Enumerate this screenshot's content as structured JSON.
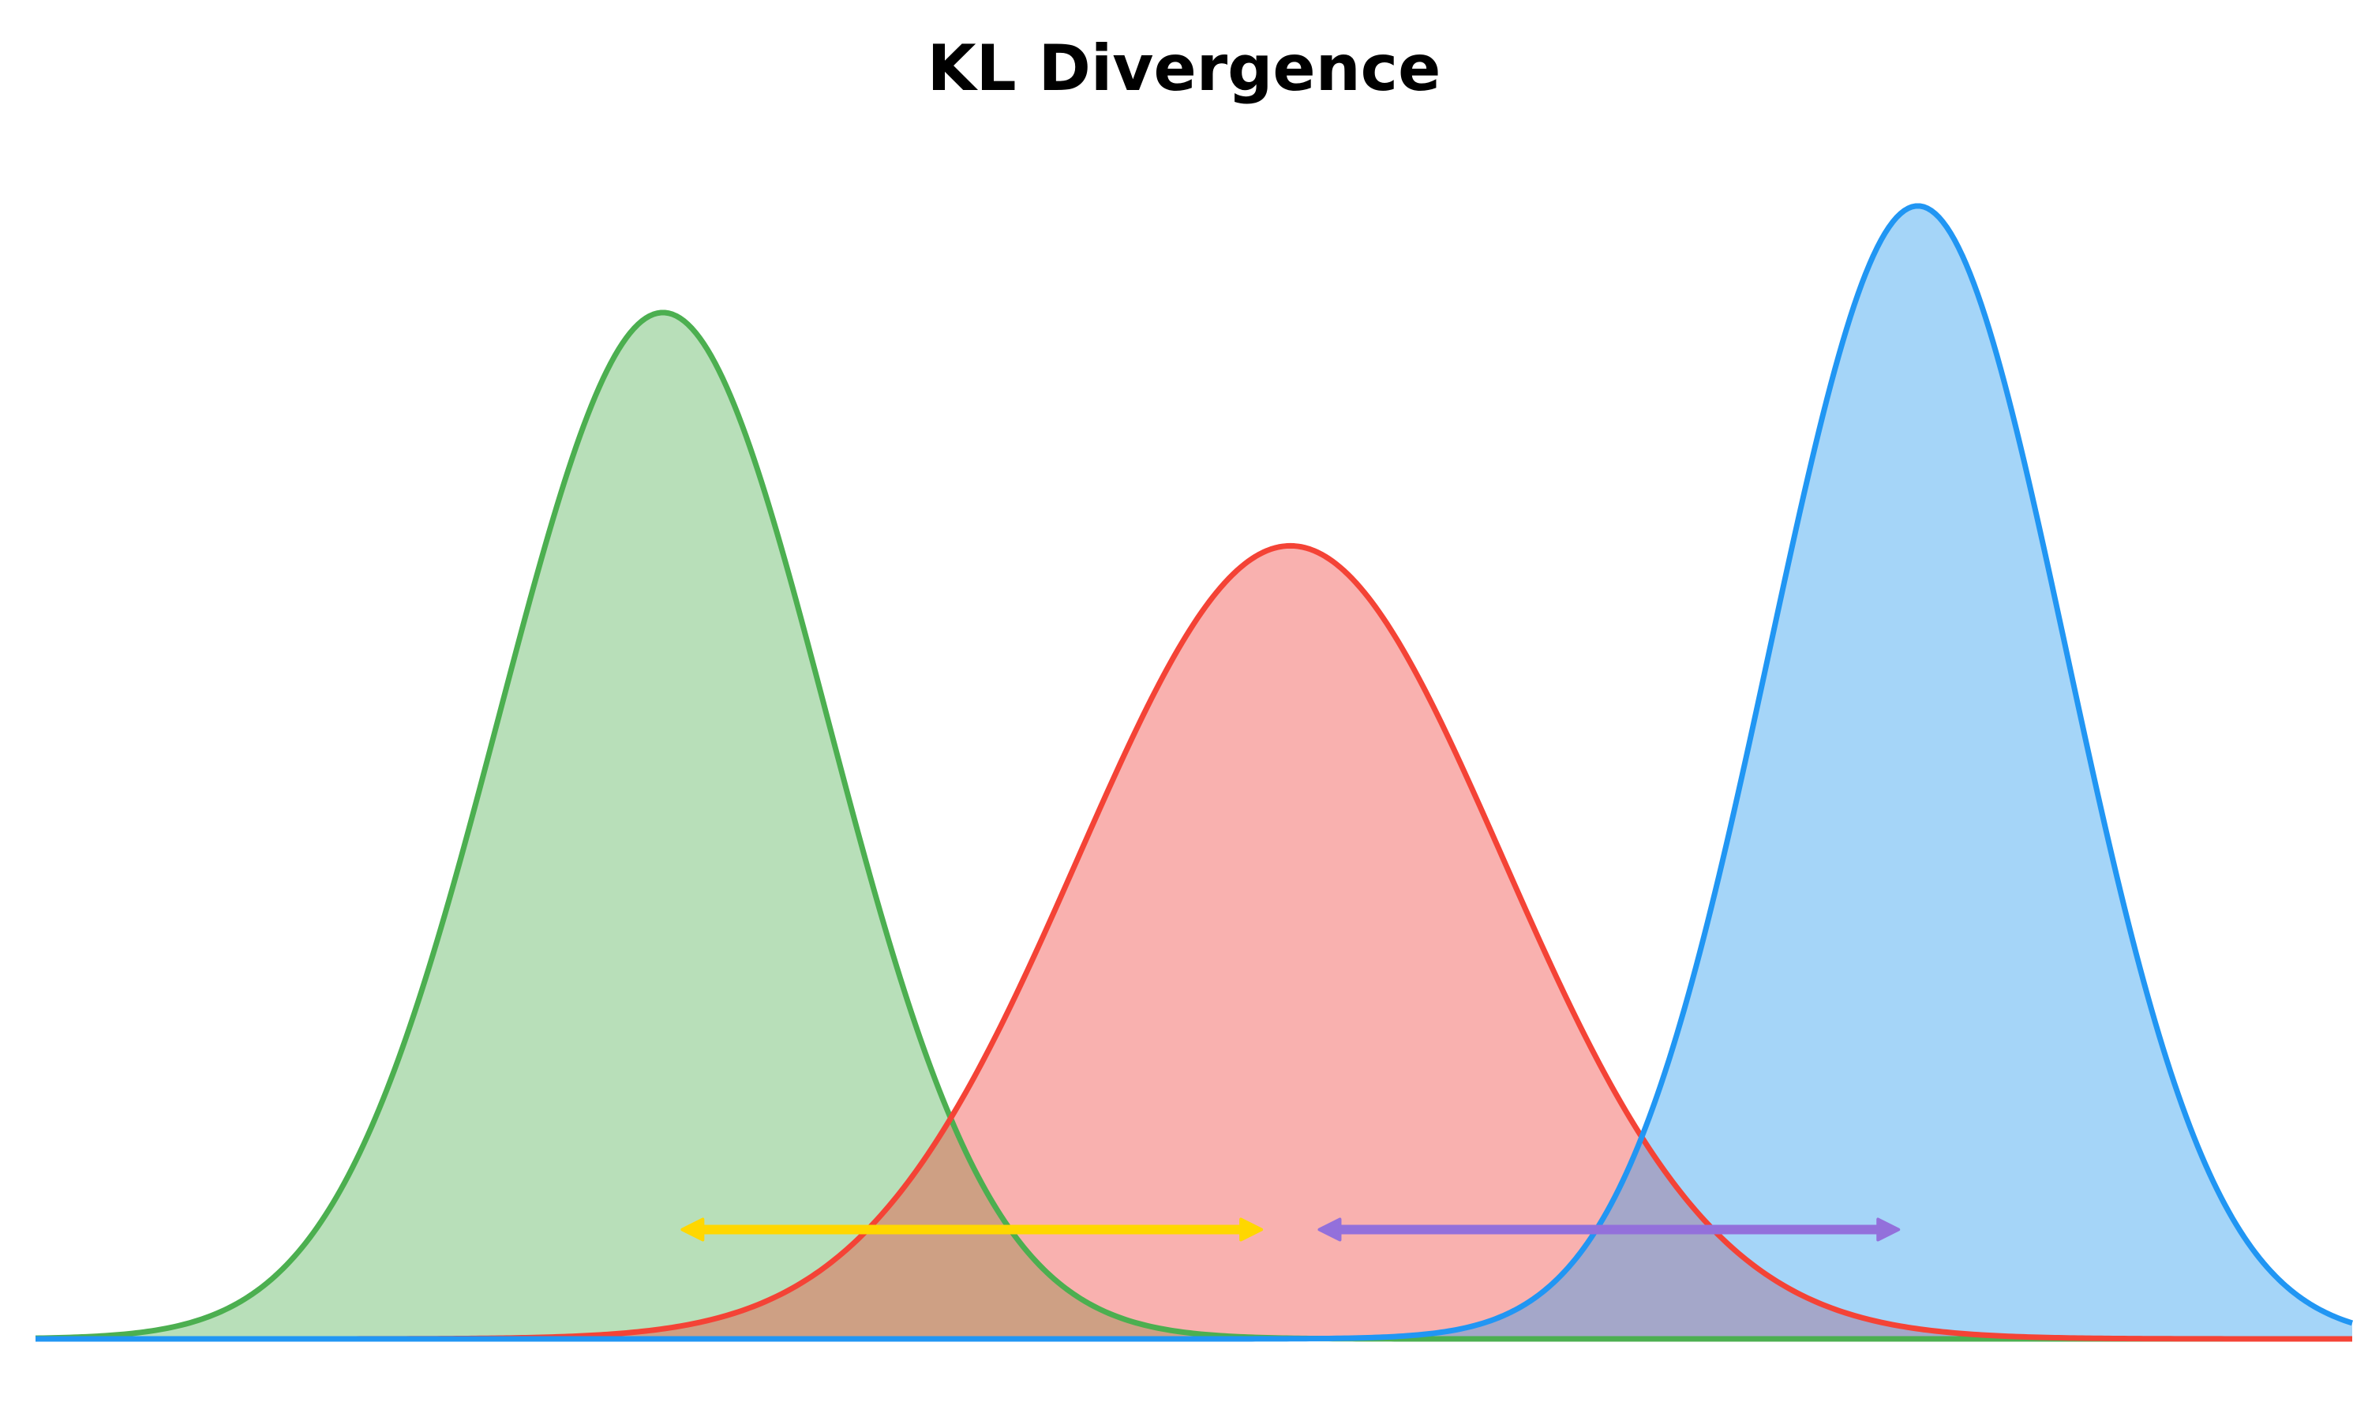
{
  "chart_data": {
    "type": "area",
    "title": "KL Divergence",
    "xlabel": "",
    "ylabel": "",
    "xlim": [
      -6,
      6
    ],
    "ylim": [
      0,
      0.5
    ],
    "grid": false,
    "axes_visible": false,
    "series": [
      {
        "mean": -2.75,
        "std": 0.85,
        "stroke": "#4CAF50",
        "fill": "#B8DFB9"
      },
      {
        "mean": 0.5,
        "std": 1.1,
        "stroke": "#F44336",
        "fill": "#F9B1AF"
      },
      {
        "mean": 3.75,
        "std": 0.77,
        "stroke": "#2196F3",
        "fill": "#A5D5F8"
      }
    ],
    "overlap_fills": [
      {
        "between": [
          0,
          1
        ],
        "fill": "#CEA084"
      },
      {
        "between": [
          1,
          2
        ],
        "fill": "#A4A7C9"
      }
    ],
    "annotations": [
      {
        "type": "double-arrow",
        "from_x": -2.65,
        "to_x": 0.35,
        "y": 0.05,
        "color": "#FFD700"
      },
      {
        "type": "double-arrow",
        "from_x": 0.65,
        "to_x": 3.65,
        "y": 0.05,
        "color": "#9370DB"
      }
    ]
  }
}
